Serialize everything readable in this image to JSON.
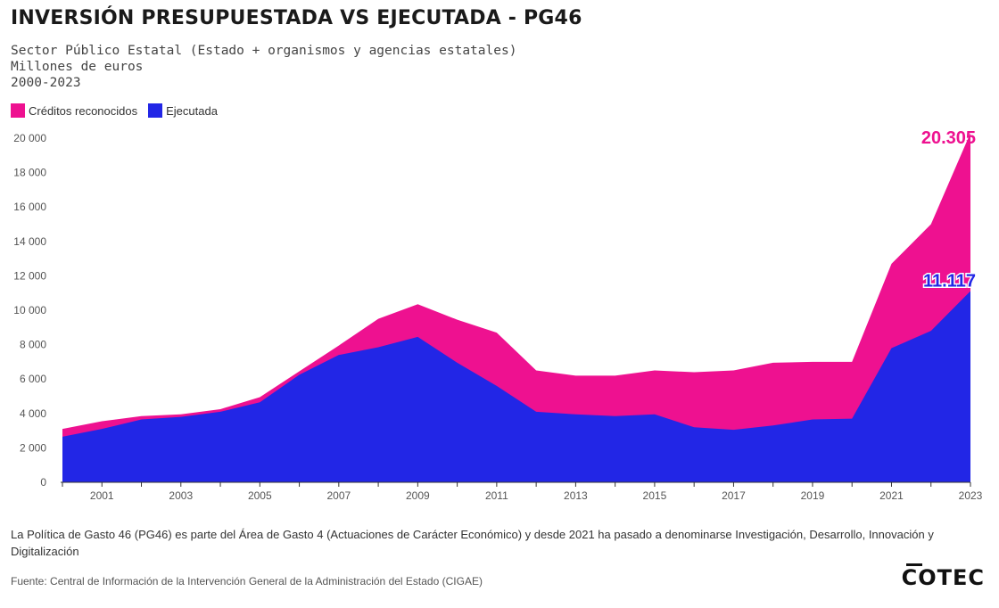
{
  "title": "INVERSIÓN PRESUPUESTADA VS EJECUTADA - PG46",
  "subtitle_lines": [
    "Sector Público Estatal (Estado + organismos y agencias estatales)",
    "Millones de euros",
    "2000-2023"
  ],
  "legend": [
    {
      "label": "Créditos reconocidos",
      "color": "#EE1190"
    },
    {
      "label": "Ejecutada",
      "color": "#2226E6"
    }
  ],
  "note": "La Política de Gasto 46 (PG46) es parte del Área de Gasto 4 (Actuaciones de Carácter Económico) y desde 2021 ha pasado a denominarse Investigación, Desarrollo, Innovación y Digitalización",
  "source": "Fuente: Central de Información de la Intervención General de la Administración del Estado (CIGAE)",
  "logo": "COTEC",
  "chart_data": {
    "type": "area",
    "x": [
      2000,
      2001,
      2002,
      2003,
      2004,
      2005,
      2006,
      2007,
      2008,
      2009,
      2010,
      2011,
      2012,
      2013,
      2014,
      2015,
      2016,
      2017,
      2018,
      2019,
      2020,
      2021,
      2022,
      2023
    ],
    "series": [
      {
        "name": "Créditos reconocidos",
        "color": "#EE1190",
        "values": [
          3100,
          3550,
          3850,
          3950,
          4250,
          4950,
          6450,
          7950,
          9500,
          10350,
          9450,
          8700,
          6500,
          6200,
          6200,
          6500,
          6400,
          6500,
          6950,
          7000,
          7000,
          12700,
          15000,
          20305
        ]
      },
      {
        "name": "Ejecutada",
        "color": "#2226E6",
        "values": [
          2650,
          3100,
          3650,
          3800,
          4100,
          4650,
          6250,
          7400,
          7850,
          8450,
          6950,
          5600,
          4100,
          3950,
          3850,
          3950,
          3200,
          3050,
          3300,
          3650,
          3700,
          7800,
          8800,
          11117
        ]
      }
    ],
    "x_ticks": [
      "2001",
      "2003",
      "2005",
      "2007",
      "2009",
      "2011",
      "2013",
      "2015",
      "2017",
      "2019",
      "2021",
      "2023"
    ],
    "y_ticks": [
      "0",
      "2 000",
      "4 000",
      "6 000",
      "8 000",
      "10 000",
      "12 000",
      "14 000",
      "16 000",
      "18 000",
      "20 000"
    ],
    "ylim": [
      0,
      20000
    ],
    "annotations": [
      {
        "label": "20.305",
        "x": 2023,
        "y": 20305,
        "color": "#EE1190"
      },
      {
        "label": "11.117",
        "x": 2023,
        "y": 11117,
        "color": "#2226E6"
      }
    ]
  }
}
